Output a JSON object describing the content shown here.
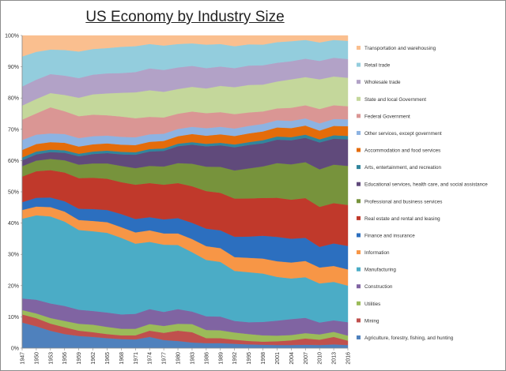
{
  "chart_data": {
    "type": "area",
    "stacked": "percent",
    "title": "US Economy by Industry Size",
    "xlabel": "",
    "ylabel": "",
    "ylim": [
      0,
      100
    ],
    "y_ticks": [
      "0%",
      "10%",
      "20%",
      "30%",
      "40%",
      "50%",
      "60%",
      "70%",
      "80%",
      "90%",
      "100%"
    ],
    "x_ticks": [
      "1947",
      "1950",
      "1953",
      "1956",
      "1959",
      "1962",
      "1965",
      "1968",
      "1971",
      "1974",
      "1977",
      "1980",
      "1983",
      "1986",
      "1989",
      "1992",
      "1995",
      "1998",
      "2001",
      "2004",
      "2007",
      "2010",
      "2013",
      "2016"
    ],
    "x": [
      1947,
      1950,
      1953,
      1956,
      1959,
      1962,
      1965,
      1968,
      1971,
      1974,
      1977,
      1980,
      1983,
      1986,
      1989,
      1992,
      1995,
      1998,
      2001,
      2004,
      2007,
      2010,
      2013,
      2016
    ],
    "legend_position": "right",
    "series": [
      {
        "name": "Agriculture, forestry, fishing, and hunting",
        "color": "#4f81bd",
        "values": [
          8.2,
          7.0,
          5.6,
          4.5,
          3.9,
          3.6,
          3.2,
          2.9,
          2.8,
          3.6,
          2.6,
          2.3,
          1.8,
          1.6,
          1.6,
          1.4,
          1.2,
          1.1,
          1.0,
          1.0,
          1.1,
          1.0,
          1.2,
          1.0
        ]
      },
      {
        "name": "Mining",
        "color": "#c0504d",
        "values": [
          2.6,
          2.6,
          2.3,
          2.2,
          1.7,
          1.5,
          1.3,
          1.2,
          1.3,
          2.0,
          2.3,
          3.3,
          3.3,
          1.6,
          1.6,
          1.3,
          1.1,
          1.0,
          1.2,
          1.5,
          2.0,
          1.7,
          2.4,
          1.4
        ]
      },
      {
        "name": "Utilities",
        "color": "#9bbb59",
        "values": [
          1.4,
          1.5,
          1.8,
          2.0,
          2.2,
          2.4,
          2.3,
          2.1,
          2.1,
          2.1,
          2.2,
          2.2,
          2.6,
          2.6,
          2.5,
          2.3,
          2.2,
          2.0,
          1.8,
          1.7,
          1.7,
          1.7,
          1.6,
          1.6
        ]
      },
      {
        "name": "Construction",
        "color": "#8064a2",
        "values": [
          3.7,
          4.4,
          4.7,
          4.8,
          4.5,
          4.4,
          4.6,
          4.6,
          4.8,
          4.8,
          4.5,
          4.7,
          4.0,
          4.4,
          4.4,
          3.7,
          3.8,
          4.3,
          4.8,
          5.1,
          4.9,
          3.8,
          3.7,
          4.3
        ]
      },
      {
        "name": "Manufacturing",
        "color": "#4bacc6",
        "values": [
          25.5,
          27.0,
          28.0,
          27.0,
          25.5,
          25.5,
          25.5,
          24.5,
          22.5,
          21.5,
          21.5,
          20.5,
          19.0,
          18.0,
          17.5,
          16.0,
          16.0,
          15.5,
          14.0,
          13.0,
          13.0,
          12.5,
          12.3,
          11.7
        ]
      },
      {
        "name": "Information",
        "color": "#f79646",
        "values": [
          2.8,
          2.8,
          3.0,
          3.2,
          3.2,
          3.3,
          3.4,
          3.4,
          3.6,
          3.7,
          3.6,
          3.7,
          4.2,
          4.4,
          4.4,
          4.4,
          4.6,
          4.8,
          5.0,
          5.1,
          5.2,
          5.1,
          5.1,
          5.2
        ]
      },
      {
        "name": "Finance and insurance",
        "color": "#2c6fbf",
        "values": [
          2.5,
          2.8,
          3.1,
          3.3,
          3.6,
          3.8,
          3.9,
          4.2,
          4.3,
          4.2,
          4.5,
          4.9,
          5.2,
          5.6,
          5.7,
          6.5,
          6.8,
          7.3,
          7.8,
          7.6,
          7.4,
          6.6,
          7.2,
          7.5
        ]
      },
      {
        "name": "Real estate and rental and leasing",
        "color": "#c0392b",
        "values": [
          8.2,
          8.5,
          8.8,
          9.2,
          9.8,
          10.0,
          10.0,
          10.2,
          11.0,
          10.9,
          11.1,
          11.2,
          11.7,
          12.0,
          12.0,
          12.2,
          12.2,
          12.1,
          12.5,
          12.5,
          12.7,
          12.8,
          12.9,
          13.1
        ]
      },
      {
        "name": "Professional and business services",
        "color": "#77933c",
        "values": [
          3.3,
          3.4,
          3.6,
          3.9,
          4.3,
          4.6,
          4.9,
          5.2,
          5.3,
          5.5,
          5.8,
          6.4,
          7.2,
          7.8,
          8.3,
          9.0,
          9.6,
          10.1,
          11.1,
          11.3,
          11.5,
          12.0,
          12.3,
          12.5
        ]
      },
      {
        "name": "Educational services, health care, and social assistance",
        "color": "#604a7b",
        "values": [
          1.9,
          2.0,
          2.2,
          2.4,
          2.7,
          3.0,
          3.3,
          3.7,
          4.3,
          4.6,
          5.0,
          5.4,
          6.1,
          6.5,
          6.9,
          7.4,
          7.5,
          7.4,
          7.5,
          7.7,
          7.8,
          8.6,
          8.3,
          8.5
        ]
      },
      {
        "name": "Arts, entertainment, and recreation",
        "color": "#31859c",
        "values": [
          0.9,
          0.9,
          0.8,
          0.8,
          0.8,
          0.8,
          0.8,
          0.8,
          0.8,
          0.8,
          0.8,
          0.8,
          0.8,
          0.8,
          0.8,
          0.9,
          0.9,
          1.0,
          1.0,
          1.0,
          1.0,
          1.0,
          1.1,
          1.1
        ]
      },
      {
        "name": "Accommodation and food services",
        "color": "#e46c0a",
        "values": [
          2.4,
          2.4,
          2.4,
          2.4,
          2.3,
          2.3,
          2.3,
          2.3,
          2.3,
          2.3,
          2.4,
          2.4,
          2.6,
          2.6,
          2.7,
          2.7,
          2.8,
          2.8,
          2.9,
          2.9,
          2.9,
          2.8,
          3.0,
          3.1
        ]
      },
      {
        "name": "Other services, except government",
        "color": "#8db3e2",
        "values": [
          3.2,
          3.0,
          2.8,
          2.8,
          2.7,
          2.6,
          2.5,
          2.5,
          2.5,
          2.4,
          2.3,
          2.3,
          2.3,
          2.4,
          2.4,
          2.4,
          2.4,
          2.4,
          2.3,
          2.3,
          2.3,
          2.3,
          2.2,
          2.2
        ]
      },
      {
        "name": "Federal Government",
        "color": "#da9694",
        "values": [
          6.5,
          6.8,
          8.4,
          7.3,
          7.0,
          6.9,
          6.5,
          6.5,
          6.1,
          5.6,
          5.2,
          4.9,
          4.9,
          4.8,
          4.7,
          4.6,
          4.3,
          4.0,
          3.8,
          4.2,
          4.2,
          4.6,
          4.4,
          4.2
        ]
      },
      {
        "name": "State and local Government",
        "color": "#c4d79b",
        "values": [
          4.5,
          4.6,
          4.6,
          5.2,
          5.9,
          6.5,
          7.0,
          7.6,
          8.3,
          8.5,
          8.2,
          7.9,
          7.9,
          7.9,
          8.4,
          8.6,
          8.8,
          8.6,
          8.6,
          9.1,
          9.0,
          9.5,
          9.2,
          9.1
        ]
      },
      {
        "name": "Wholesale trade",
        "color": "#b2a2c7",
        "values": [
          6.1,
          6.2,
          6.1,
          6.2,
          6.3,
          6.3,
          6.4,
          6.3,
          6.5,
          7.0,
          7.0,
          6.9,
          6.7,
          6.5,
          6.2,
          6.1,
          6.2,
          6.2,
          6.0,
          5.8,
          5.9,
          5.9,
          6.0,
          6.0
        ]
      },
      {
        "name": "Retail trade",
        "color": "#93cddd",
        "values": [
          9.6,
          8.9,
          7.9,
          8.2,
          8.5,
          8.2,
          8.1,
          8.4,
          8.3,
          7.8,
          7.8,
          7.5,
          7.2,
          7.5,
          7.2,
          7.0,
          6.8,
          6.6,
          6.6,
          6.4,
          6.0,
          5.9,
          5.7,
          5.8
        ]
      },
      {
        "name": "Transportation and warehousing",
        "color": "#fabf8f",
        "values": [
          6.7,
          5.2,
          4.5,
          4.6,
          5.1,
          4.3,
          4.0,
          3.6,
          3.4,
          2.7,
          3.2,
          2.7,
          2.5,
          2.9,
          2.7,
          3.4,
          2.8,
          2.9,
          2.1,
          1.8,
          1.4,
          2.2,
          1.4,
          1.7
        ]
      }
    ]
  }
}
